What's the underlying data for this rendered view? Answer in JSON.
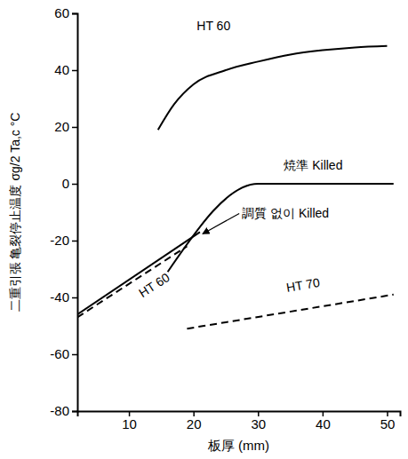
{
  "chart_data": {
    "type": "line",
    "ylabel": "二重引張 亀裂停止温度 σg/2 Ta,c °C",
    "xlabel": "板厚 (mm)",
    "xlim": [
      2,
      52
    ],
    "xticks": [
      10,
      20,
      30,
      40,
      50
    ],
    "ylim": [
      -80,
      60
    ],
    "yticks": [
      -80,
      -60,
      -40,
      -20,
      0,
      20,
      40,
      60
    ],
    "grid": false,
    "series": [
      {
        "name": "HT 60",
        "color": "#000000",
        "line_style": "solid",
        "x": [
          14.5,
          17,
          20,
          25,
          30,
          35,
          40,
          45,
          50
        ],
        "values": [
          19,
          28,
          35,
          40,
          43,
          45.5,
          47,
          48,
          48.5
        ],
        "label_pos": [
          20.5,
          54
        ]
      },
      {
        "name": "焼準 Killed",
        "color": "#000000",
        "line_style": "solid",
        "x": [
          16,
          30,
          51
        ],
        "values": [
          -31,
          0,
          0
        ],
        "label_pos": [
          34,
          5
        ]
      },
      {
        "name": "調質 없이 Killed",
        "color": "#000000",
        "line_style": "solid",
        "x": [
          2,
          21
        ],
        "values": [
          -46,
          -17
        ],
        "label_pos": [
          27.5,
          -12
        ]
      },
      {
        "name": "HT 60",
        "color": "#000000",
        "line_style": "dashed",
        "x": [
          2,
          19
        ],
        "values": [
          -47,
          -22
        ],
        "label_pos": [
          14,
          -36
        ]
      },
      {
        "name": "HT 70",
        "color": "#000000",
        "line_style": "dashed",
        "x": [
          19,
          51
        ],
        "values": [
          -51,
          -39
        ],
        "label_pos": [
          37,
          -36
        ]
      }
    ]
  }
}
